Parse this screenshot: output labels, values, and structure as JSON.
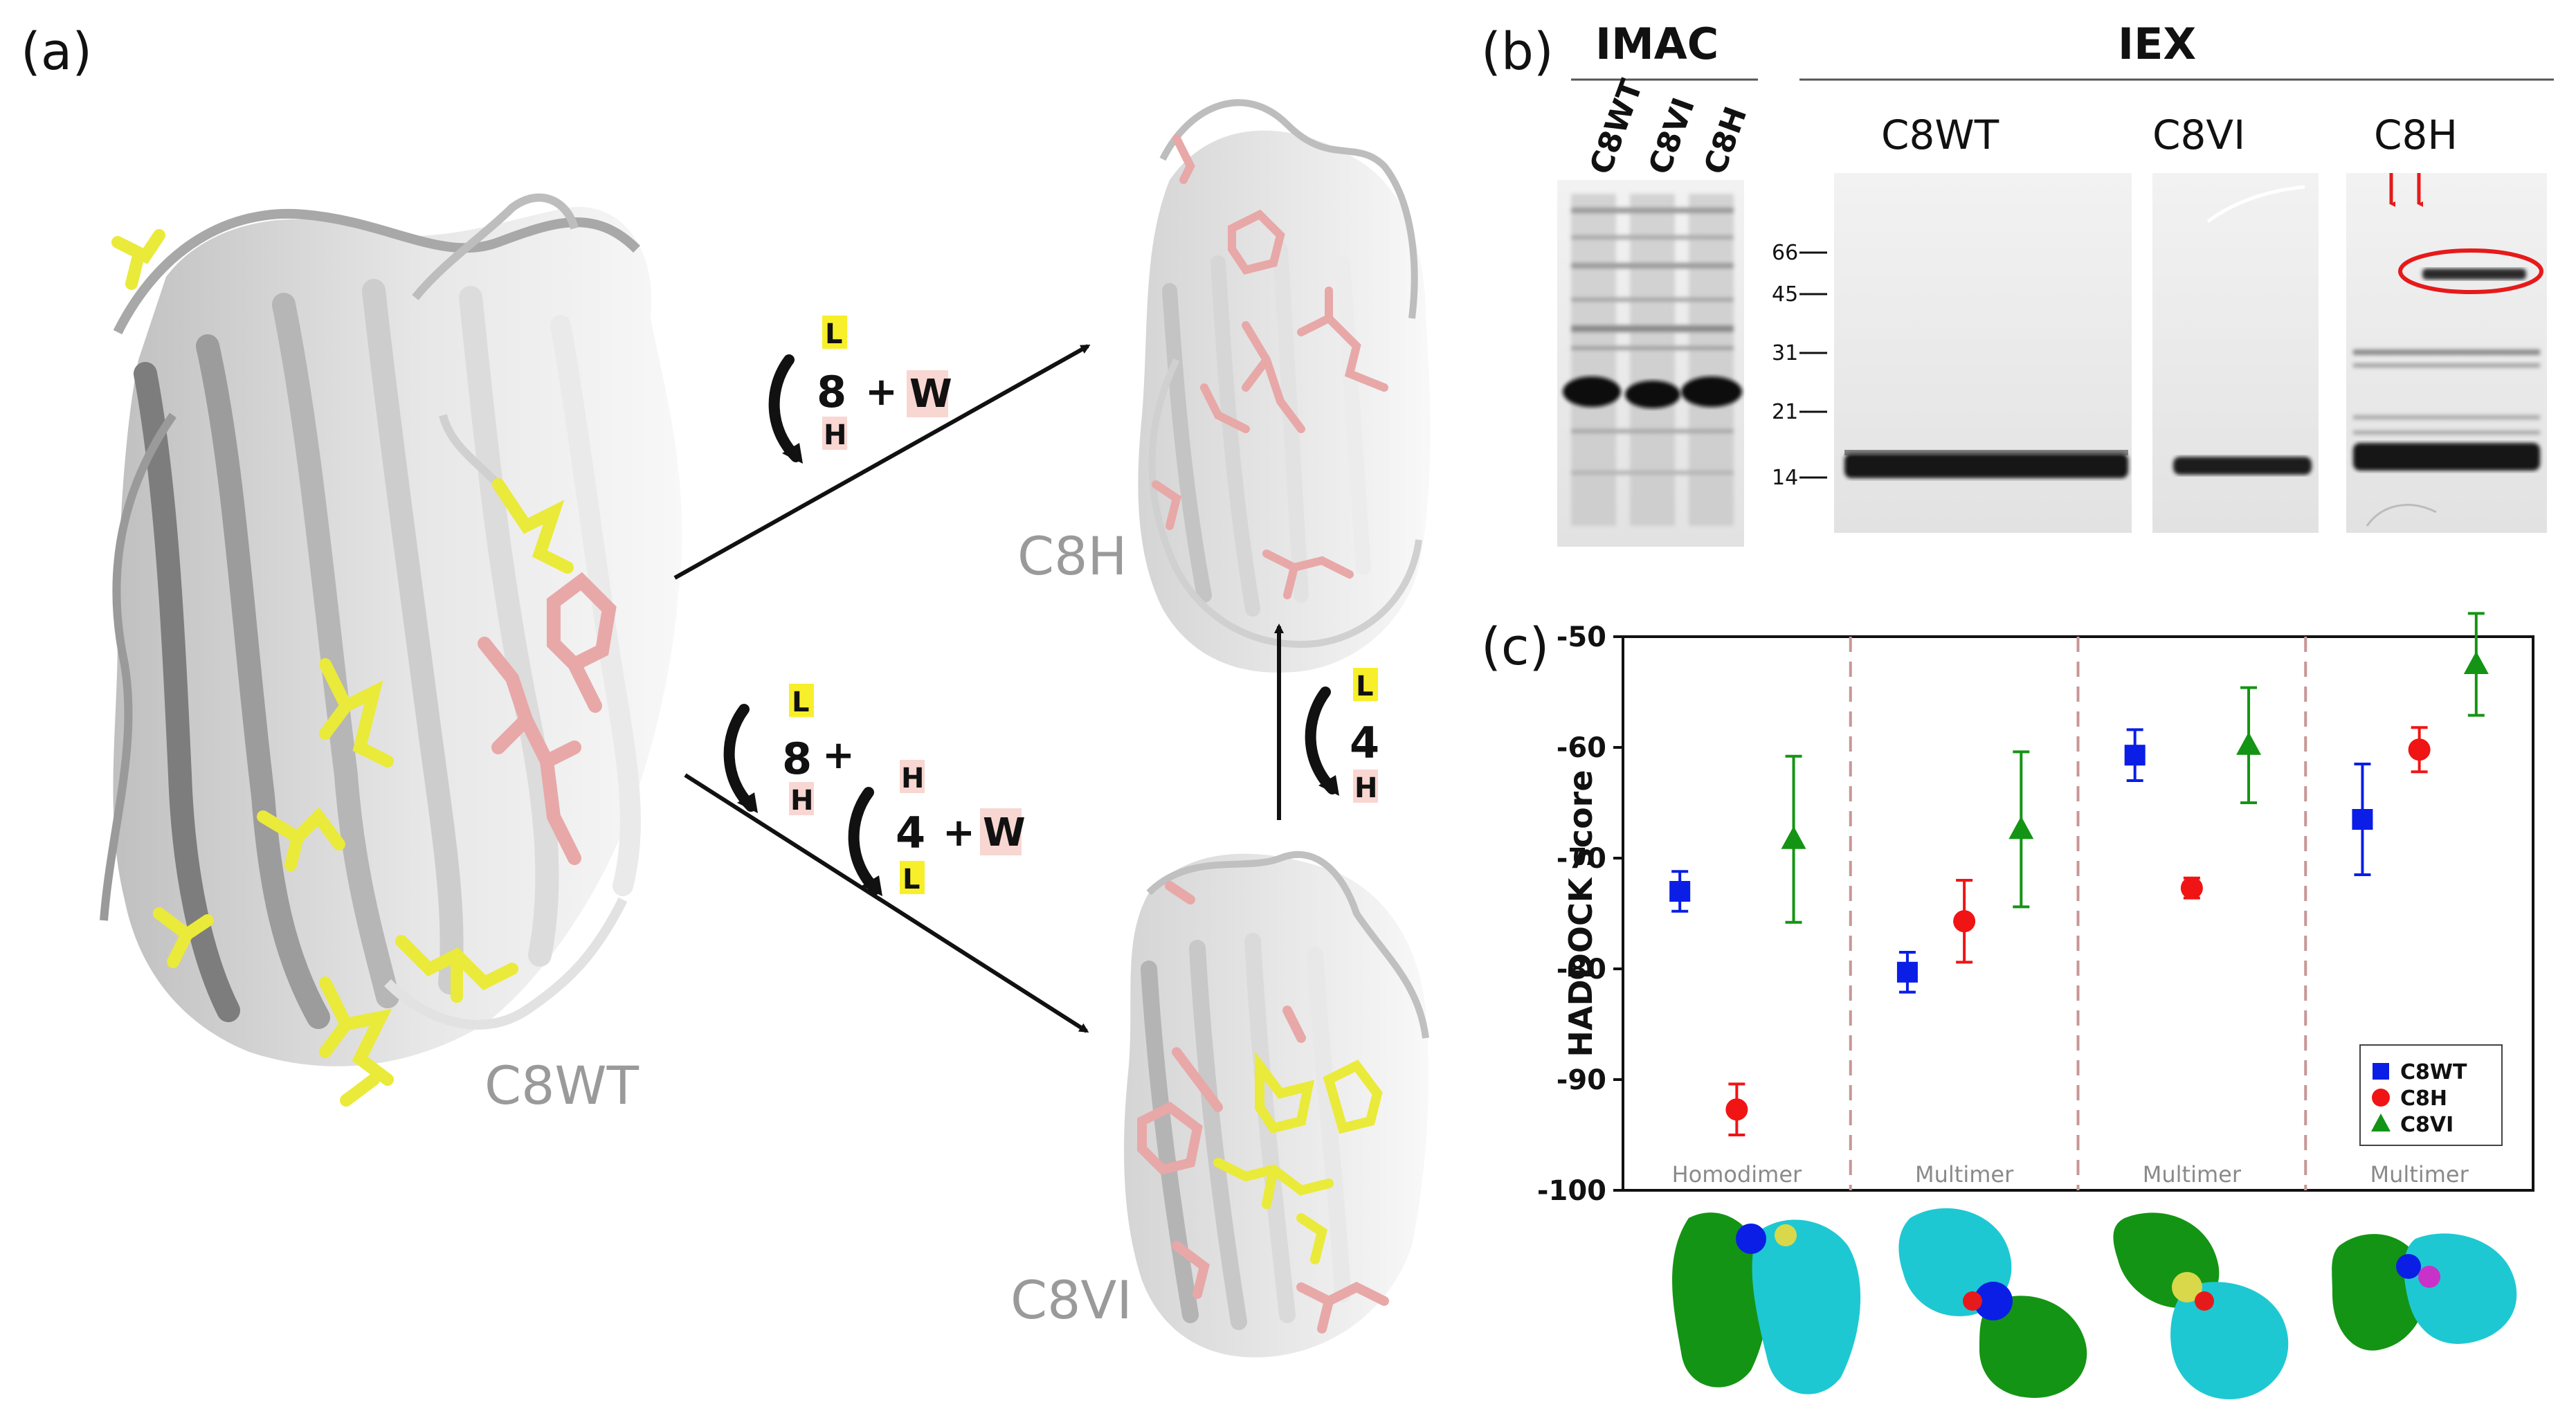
{
  "panel_labels": {
    "a": "(a)",
    "b": "(b)",
    "c": "(c)"
  },
  "structures": {
    "wt": "C8WT",
    "h": "C8H",
    "vi": "C8VI"
  },
  "scheme": {
    "top": {
      "num": "8",
      "top_letter": "L",
      "bottom_letter": "H",
      "plus": "+",
      "w": "W"
    },
    "bottom_first": {
      "num": "8",
      "top_letter": "L",
      "bottom_letter": "H",
      "plus": "+"
    },
    "bottom_second": {
      "num": "4",
      "top_letter": "H",
      "bottom_letter": "L",
      "plus": "+",
      "w": "W"
    },
    "vertical": {
      "num": "4",
      "top_letter": "L",
      "bottom_letter": "H"
    }
  },
  "gel": {
    "imac_title": "IMAC",
    "iex_title": "IEX",
    "imac_lanes": [
      "C8WT",
      "C8VI",
      "C8H"
    ],
    "iex_sections": [
      "C8WT",
      "C8VI",
      "C8H"
    ],
    "mw_markers": [
      "66",
      "45",
      "31",
      "21",
      "14"
    ]
  },
  "colors": {
    "ribbon_light": "#e6e6e6",
    "ribbon_dark": "#9a9a9a",
    "yellow_residue": "#eaea3a",
    "pink_residue": "#e8a8a8",
    "letter_highlight_yellow": "#f7ef2a",
    "letter_highlight_pink": "#f8d6d2",
    "blue": "#0a1ee6",
    "red": "#f01414",
    "green": "#149414",
    "cyan": "#1ec8d2",
    "dashed": "#c89696"
  },
  "chart_data": {
    "type": "scatter",
    "ylabel": "HADDOCK score",
    "ylim": [
      -100,
      -50
    ],
    "yticks": [
      "-50",
      "-60",
      "-70",
      "-80",
      "-90",
      "-100"
    ],
    "categories": [
      "Homodimer",
      "Multimer",
      "Multimer",
      "Multimer"
    ],
    "grid": false,
    "legend_position": "bottom-right",
    "series": [
      {
        "name": "C8WT",
        "color": "#0a1ee6",
        "marker": "square",
        "values": [
          -73,
          -80.3,
          -60.7,
          -66.5
        ],
        "errors": [
          1.8,
          1.8,
          2.3,
          5
        ]
      },
      {
        "name": "C8H",
        "color": "#f01414",
        "marker": "circle",
        "values": [
          -92.7,
          -75.7,
          -72.7,
          -60.2
        ],
        "errors": [
          2.3,
          3.7,
          0.9,
          2
        ]
      },
      {
        "name": "C8VI",
        "color": "#149414",
        "marker": "triangle",
        "values": [
          -68.3,
          -67.4,
          -59.8,
          -52.5
        ],
        "errors": [
          7.5,
          7,
          5.2,
          4.6
        ]
      }
    ]
  }
}
